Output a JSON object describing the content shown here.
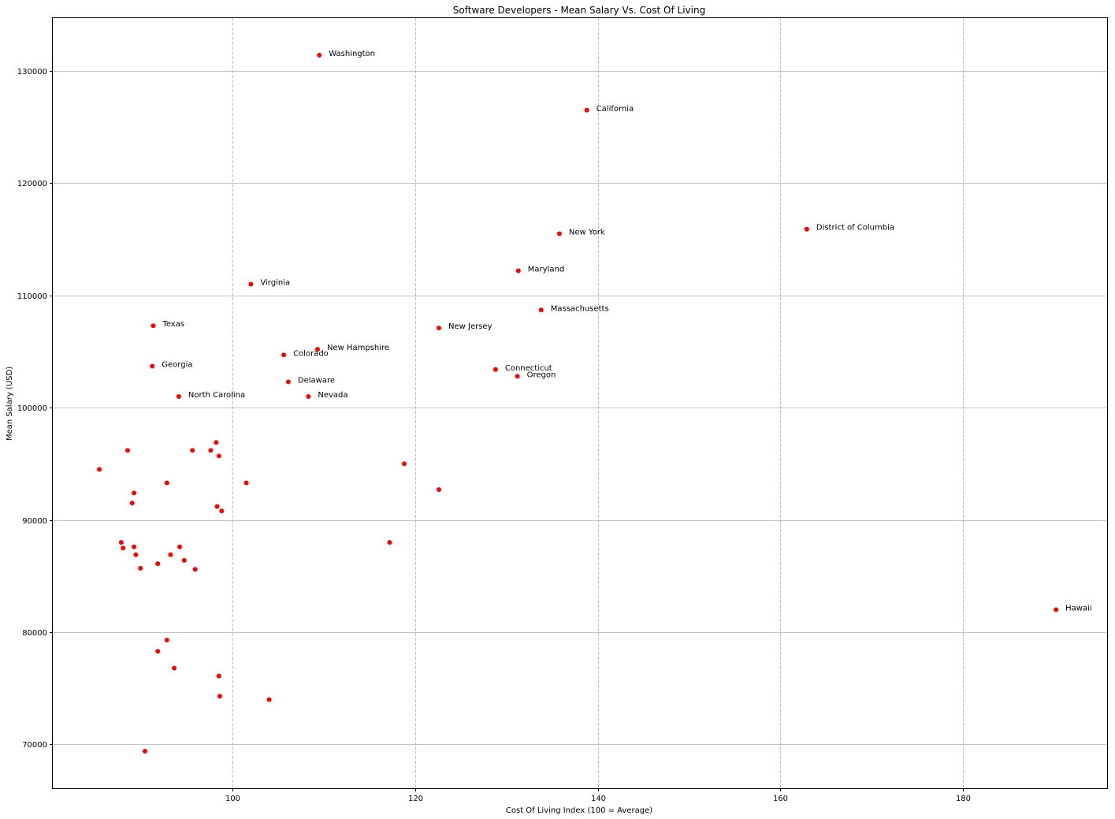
{
  "chart_data": {
    "type": "scatter",
    "title": "Software Developers - Mean Salary Vs. Cost Of Living",
    "xlabel": "Cost Of Living Index (100 = Average)",
    "ylabel": "Mean Salary (USD)",
    "xlim": [
      80.3,
      195.8
    ],
    "ylim": [
      66100,
      134700
    ],
    "xticks": [
      100,
      120,
      140,
      160,
      180
    ],
    "yticks": [
      70000,
      80000,
      90000,
      100000,
      110000,
      120000,
      130000
    ],
    "x_grid": "dashed",
    "y_grid": "solid",
    "marker_color": "#ff0000",
    "points": [
      {
        "x": 109.5,
        "y": 131400,
        "label": "Washington"
      },
      {
        "x": 138.8,
        "y": 126500,
        "label": "California"
      },
      {
        "x": 162.9,
        "y": 115900,
        "label": "District of Columbia"
      },
      {
        "x": 135.8,
        "y": 115500,
        "label": "New York"
      },
      {
        "x": 131.3,
        "y": 112200,
        "label": "Maryland"
      },
      {
        "x": 102.0,
        "y": 111000,
        "label": "Virginia"
      },
      {
        "x": 133.8,
        "y": 108700,
        "label": "Massachusetts"
      },
      {
        "x": 91.3,
        "y": 107300,
        "label": "Texas"
      },
      {
        "x": 122.6,
        "y": 107100,
        "label": "New Jersey"
      },
      {
        "x": 109.3,
        "y": 105200,
        "label": "New Hampshire"
      },
      {
        "x": 105.6,
        "y": 104700,
        "label": "Colorado"
      },
      {
        "x": 91.2,
        "y": 103700,
        "label": "Georgia"
      },
      {
        "x": 128.8,
        "y": 103400,
        "label": "Connecticut"
      },
      {
        "x": 131.2,
        "y": 102800,
        "label": "Oregon"
      },
      {
        "x": 106.1,
        "y": 102300,
        "label": "Delaware"
      },
      {
        "x": 94.1,
        "y": 101000,
        "label": "North Carolina"
      },
      {
        "x": 108.3,
        "y": 101000,
        "label": "Nevada"
      },
      {
        "x": 190.2,
        "y": 82000,
        "label": "Hawaii"
      },
      {
        "x": 85.4,
        "y": 94500
      },
      {
        "x": 88.5,
        "y": 96200
      },
      {
        "x": 95.6,
        "y": 96200
      },
      {
        "x": 97.6,
        "y": 96200
      },
      {
        "x": 98.2,
        "y": 96900
      },
      {
        "x": 98.5,
        "y": 95700
      },
      {
        "x": 92.8,
        "y": 93300
      },
      {
        "x": 101.5,
        "y": 93300
      },
      {
        "x": 89.2,
        "y": 92400
      },
      {
        "x": 89.0,
        "y": 91500
      },
      {
        "x": 98.3,
        "y": 91200
      },
      {
        "x": 98.8,
        "y": 90800
      },
      {
        "x": 118.8,
        "y": 95000
      },
      {
        "x": 122.6,
        "y": 92700
      },
      {
        "x": 117.2,
        "y": 88000
      },
      {
        "x": 87.8,
        "y": 88000
      },
      {
        "x": 88.0,
        "y": 87500
      },
      {
        "x": 89.2,
        "y": 87600
      },
      {
        "x": 89.4,
        "y": 86900
      },
      {
        "x": 94.2,
        "y": 87600
      },
      {
        "x": 93.2,
        "y": 86900
      },
      {
        "x": 94.7,
        "y": 86400
      },
      {
        "x": 91.8,
        "y": 86100
      },
      {
        "x": 89.9,
        "y": 85700
      },
      {
        "x": 95.9,
        "y": 85600
      },
      {
        "x": 92.8,
        "y": 79300
      },
      {
        "x": 91.8,
        "y": 78300
      },
      {
        "x": 93.6,
        "y": 76800
      },
      {
        "x": 98.5,
        "y": 76100
      },
      {
        "x": 98.6,
        "y": 74300
      },
      {
        "x": 104.0,
        "y": 74000
      },
      {
        "x": 90.4,
        "y": 69400
      }
    ]
  }
}
